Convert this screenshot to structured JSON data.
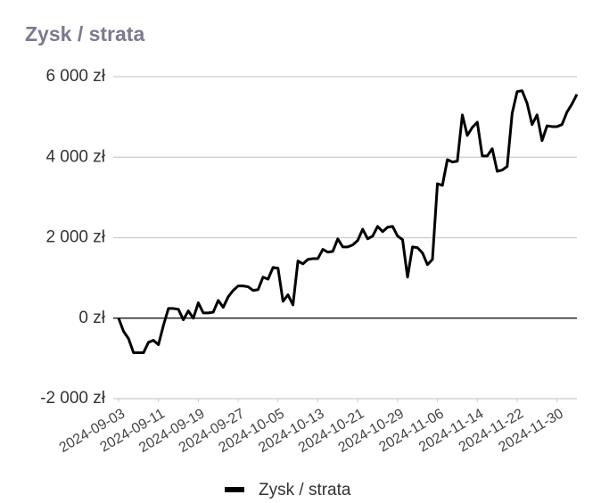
{
  "chart_data": {
    "type": "line",
    "title": "Zysk / strata",
    "x": [
      "2024-09-03",
      "2024-09-04",
      "2024-09-05",
      "2024-09-06",
      "2024-09-07",
      "2024-09-08",
      "2024-09-09",
      "2024-09-10",
      "2024-09-11",
      "2024-09-12",
      "2024-09-13",
      "2024-09-14",
      "2024-09-15",
      "2024-09-16",
      "2024-09-17",
      "2024-09-18",
      "2024-09-19",
      "2024-09-20",
      "2024-09-21",
      "2024-09-22",
      "2024-09-23",
      "2024-09-24",
      "2024-09-25",
      "2024-09-26",
      "2024-09-27",
      "2024-09-28",
      "2024-09-29",
      "2024-09-30",
      "2024-10-01",
      "2024-10-02",
      "2024-10-03",
      "2024-10-04",
      "2024-10-05",
      "2024-10-06",
      "2024-10-07",
      "2024-10-08",
      "2024-10-09",
      "2024-10-10",
      "2024-10-11",
      "2024-10-12",
      "2024-10-13",
      "2024-10-14",
      "2024-10-15",
      "2024-10-16",
      "2024-10-17",
      "2024-10-18",
      "2024-10-19",
      "2024-10-20",
      "2024-10-21",
      "2024-10-22",
      "2024-10-23",
      "2024-10-24",
      "2024-10-25",
      "2024-10-26",
      "2024-10-27",
      "2024-10-28",
      "2024-10-29",
      "2024-10-30",
      "2024-10-31",
      "2024-11-01",
      "2024-11-02",
      "2024-11-03",
      "2024-11-04",
      "2024-11-05",
      "2024-11-06",
      "2024-11-07",
      "2024-11-08",
      "2024-11-09",
      "2024-11-10",
      "2024-11-11",
      "2024-11-12",
      "2024-11-13",
      "2024-11-14",
      "2024-11-15",
      "2024-11-16",
      "2024-11-17",
      "2024-11-18",
      "2024-11-19",
      "2024-11-20",
      "2024-11-21",
      "2024-11-22",
      "2024-11-23",
      "2024-11-24",
      "2024-11-25",
      "2024-11-26",
      "2024-11-27",
      "2024-11-28",
      "2024-11-29",
      "2024-11-30",
      "2024-12-01",
      "2024-12-02",
      "2024-12-03",
      "2024-12-04"
    ],
    "series": [
      {
        "name": "Zysk / strata",
        "color": "#000000",
        "values": [
          0,
          -330,
          -510,
          -860,
          -860,
          -860,
          -600,
          -550,
          -660,
          -180,
          240,
          240,
          220,
          -40,
          180,
          0,
          380,
          130,
          130,
          150,
          440,
          270,
          530,
          690,
          800,
          800,
          780,
          690,
          710,
          1020,
          970,
          1260,
          1240,
          420,
          580,
          330,
          1420,
          1350,
          1460,
          1480,
          1480,
          1710,
          1640,
          1660,
          1970,
          1770,
          1770,
          1820,
          1930,
          2210,
          1970,
          2040,
          2280,
          2150,
          2260,
          2280,
          2040,
          1950,
          1020,
          1770,
          1750,
          1620,
          1330,
          1460,
          3340,
          3300,
          3940,
          3880,
          3900,
          5050,
          4540,
          4740,
          4870,
          4030,
          4030,
          4210,
          3650,
          3680,
          3770,
          5090,
          5630,
          5650,
          5340,
          4810,
          5050,
          4410,
          4780,
          4760,
          4760,
          4810,
          5120,
          5320,
          5560
        ]
      }
    ],
    "xlim": [
      "2024-09-03",
      "2024-12-04"
    ],
    "xticks": [
      "2024-09-03",
      "2024-09-11",
      "2024-09-19",
      "2024-09-27",
      "2024-10-05",
      "2024-10-13",
      "2024-10-21",
      "2024-10-29",
      "2024-11-06",
      "2024-11-14",
      "2024-11-22",
      "2024-11-30"
    ],
    "ylim": [
      -2000,
      6000
    ],
    "yticks": [
      {
        "value": -2000,
        "label": "-2 000 zł"
      },
      {
        "value": 0,
        "label": "0 zł"
      },
      {
        "value": 2000,
        "label": "2 000 zł"
      },
      {
        "value": 4000,
        "label": "4 000 zł"
      },
      {
        "value": 6000,
        "label": "6 000 zł"
      }
    ],
    "grid": true,
    "legend": "bottom"
  }
}
